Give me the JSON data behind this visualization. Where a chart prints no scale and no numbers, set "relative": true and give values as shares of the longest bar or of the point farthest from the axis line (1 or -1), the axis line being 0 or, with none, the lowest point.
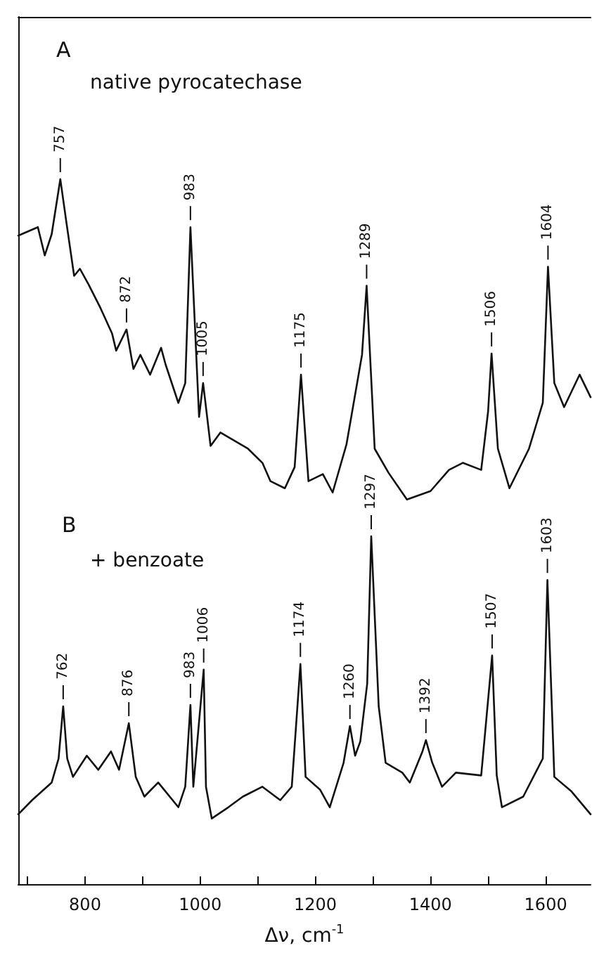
{
  "chart_data": {
    "type": "line",
    "relative": true,
    "xlabel": "Δν, cm$^{-1}$",
    "marker": "none",
    "line_style": "solid",
    "tick_labels": "x",
    "xlim": [
      684,
      1678
    ],
    "xticks": [
      {
        "value": 700,
        "label": null
      },
      800,
      {
        "value": 900,
        "label": null
      },
      1000,
      {
        "value": 1100,
        "label": null
      },
      1200,
      {
        "value": 1300,
        "label": null
      },
      1400,
      {
        "value": 1500,
        "label": null
      },
      1600
    ],
    "series": [
      {
        "color": "#111111",
        "x": [
          684,
          718,
          730,
          742,
          757,
          767,
          781,
          791,
          806,
          827,
          847,
          854,
          872,
          884,
          896,
          913,
          932,
          940,
          962,
          974,
          983,
          998,
          1005,
          1018,
          1035,
          1083,
          1108,
          1122,
          1147,
          1164,
          1175,
          1188,
          1213,
          1230,
          1254,
          1281,
          1289,
          1303,
          1327,
          1359,
          1400,
          1432,
          1456,
          1488,
          1500,
          1506,
          1517,
          1537,
          1571,
          1595,
          1604,
          1615,
          1632,
          1659,
          1678
        ],
        "values": [
          0.92,
          0.932,
          0.892,
          0.922,
          1.0,
          0.942,
          0.863,
          0.873,
          0.851,
          0.817,
          0.781,
          0.757,
          0.787,
          0.731,
          0.751,
          0.723,
          0.761,
          0.737,
          0.683,
          0.711,
          0.932,
          0.663,
          0.711,
          0.622,
          0.641,
          0.618,
          0.598,
          0.572,
          0.562,
          0.592,
          0.723,
          0.572,
          0.582,
          0.556,
          0.624,
          0.751,
          0.849,
          0.618,
          0.584,
          0.546,
          0.558,
          0.588,
          0.598,
          0.588,
          0.671,
          0.753,
          0.618,
          0.562,
          0.618,
          0.683,
          0.876,
          0.711,
          0.677,
          0.723,
          0.691
        ]
      },
      {
        "color": "#111111",
        "x": [
          684,
          708,
          742,
          754,
          762,
          769,
          779,
          803,
          823,
          845,
          859,
          876,
          888,
          903,
          927,
          962,
          974,
          983,
          988,
          1006,
          1010,
          1020,
          1049,
          1074,
          1108,
          1139,
          1159,
          1174,
          1183,
          1208,
          1225,
          1249,
          1260,
          1269,
          1278,
          1290,
          1297,
          1310,
          1322,
          1351,
          1364,
          1386,
          1392,
          1403,
          1420,
          1444,
          1488,
          1507,
          1515,
          1524,
          1561,
          1595,
          1603,
          1615,
          1644,
          1678
        ],
        "values": [
          0.1,
          0.12,
          0.145,
          0.179,
          0.253,
          0.179,
          0.153,
          0.183,
          0.163,
          0.189,
          0.163,
          0.229,
          0.153,
          0.125,
          0.145,
          0.11,
          0.139,
          0.255,
          0.139,
          0.305,
          0.139,
          0.094,
          0.11,
          0.125,
          0.139,
          0.12,
          0.139,
          0.313,
          0.153,
          0.135,
          0.11,
          0.173,
          0.225,
          0.183,
          0.203,
          0.285,
          0.494,
          0.253,
          0.173,
          0.159,
          0.145,
          0.189,
          0.205,
          0.173,
          0.139,
          0.159,
          0.155,
          0.325,
          0.155,
          0.11,
          0.125,
          0.179,
          0.432,
          0.153,
          0.133,
          0.1
        ]
      }
    ],
    "annotations": [
      "A",
      "native pyrocatechase",
      "B",
      "+ benzoate",
      {
        "text": "757",
        "x": 757,
        "y": 1.0
      },
      {
        "text": "872",
        "x": 872,
        "y": 0.787
      },
      {
        "text": "983",
        "x": 983,
        "y": 0.932
      },
      {
        "text": "1005",
        "x": 1005,
        "y": 0.711
      },
      {
        "text": "1175",
        "x": 1175,
        "y": 0.723
      },
      {
        "text": "1289",
        "x": 1289,
        "y": 0.849
      },
      {
        "text": "1506",
        "x": 1506,
        "y": 0.753
      },
      {
        "text": "1604",
        "x": 1604,
        "y": 0.876
      },
      {
        "text": "762",
        "x": 762,
        "y": 0.253
      },
      {
        "text": "876",
        "x": 876,
        "y": 0.229
      },
      {
        "text": "983",
        "x": 983,
        "y": 0.255
      },
      {
        "text": "1006",
        "x": 1006,
        "y": 0.305
      },
      {
        "text": "1174",
        "x": 1174,
        "y": 0.313
      },
      {
        "text": "1260",
        "x": 1260,
        "y": 0.225
      },
      {
        "text": "1297",
        "x": 1297,
        "y": 0.494
      },
      {
        "text": "1392",
        "x": 1392,
        "y": 0.205
      },
      {
        "text": "1507",
        "x": 1507,
        "y": 0.325
      },
      {
        "text": "1603",
        "x": 1603,
        "y": 0.432
      }
    ]
  }
}
